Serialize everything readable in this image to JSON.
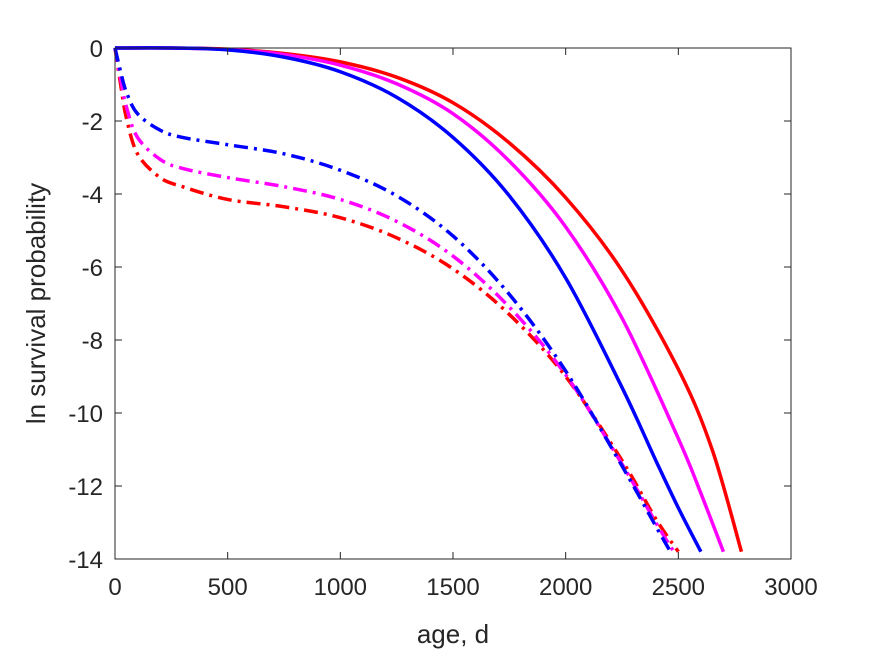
{
  "chart_data": {
    "type": "line",
    "xlabel": "age, d",
    "ylabel": "ln survival probability",
    "xlim": [
      0,
      3000
    ],
    "ylim": [
      -14,
      0
    ],
    "xticks": [
      0,
      500,
      1000,
      1500,
      2000,
      2500,
      3000
    ],
    "yticks": [
      0,
      -2,
      -4,
      -6,
      -8,
      -10,
      -12,
      -14
    ],
    "grid": false,
    "legend": "none",
    "series": [
      {
        "color": "#ff0000",
        "style": "solid",
        "x": [
          0,
          250,
          500,
          750,
          1000,
          1250,
          1500,
          1750,
          2000,
          2250,
          2500,
          2650,
          2780
        ],
        "y": [
          0,
          0,
          -0.03,
          -0.15,
          -0.38,
          -0.8,
          -1.5,
          -2.6,
          -4.1,
          -6.1,
          -8.8,
          -11.0,
          -13.8
        ]
      },
      {
        "color": "#ff00ff",
        "style": "solid",
        "x": [
          0,
          250,
          500,
          750,
          1000,
          1250,
          1500,
          1750,
          2000,
          2250,
          2500,
          2600,
          2700
        ],
        "y": [
          0,
          0,
          -0.04,
          -0.18,
          -0.47,
          -0.98,
          -1.8,
          -3.1,
          -4.9,
          -7.4,
          -10.7,
          -12.2,
          -13.8
        ]
      },
      {
        "color": "#0000ff",
        "style": "solid",
        "x": [
          0,
          250,
          500,
          750,
          1000,
          1250,
          1500,
          1750,
          2000,
          2250,
          2400,
          2500,
          2600
        ],
        "y": [
          0,
          0,
          -0.05,
          -0.25,
          -0.65,
          -1.35,
          -2.45,
          -4.05,
          -6.3,
          -9.3,
          -11.3,
          -12.6,
          -13.8
        ]
      },
      {
        "color": "#ff0000",
        "style": "dashdot",
        "x": [
          0,
          25,
          50,
          100,
          200,
          300,
          500,
          750,
          1000,
          1250,
          1500,
          1750,
          2000,
          2250,
          2400,
          2500
        ],
        "y": [
          0,
          -1.0,
          -1.9,
          -2.9,
          -3.55,
          -3.8,
          -4.15,
          -4.35,
          -4.65,
          -5.2,
          -6.05,
          -7.3,
          -9.0,
          -11.3,
          -12.9,
          -13.8
        ]
      },
      {
        "color": "#ff00ff",
        "style": "dashdot",
        "x": [
          0,
          25,
          50,
          100,
          200,
          300,
          500,
          750,
          1000,
          1250,
          1500,
          1750,
          2000,
          2250,
          2400,
          2480
        ],
        "y": [
          0,
          -0.85,
          -1.6,
          -2.45,
          -3.05,
          -3.3,
          -3.55,
          -3.8,
          -4.15,
          -4.75,
          -5.7,
          -7.1,
          -8.95,
          -11.4,
          -13.0,
          -13.8
        ]
      },
      {
        "color": "#0000ff",
        "style": "dashdot",
        "x": [
          0,
          25,
          50,
          100,
          200,
          300,
          500,
          750,
          1000,
          1250,
          1500,
          1750,
          2000,
          2250,
          2400,
          2465
        ],
        "y": [
          0,
          -0.65,
          -1.2,
          -1.8,
          -2.25,
          -2.45,
          -2.65,
          -2.9,
          -3.35,
          -4.05,
          -5.15,
          -6.75,
          -8.85,
          -11.45,
          -13.1,
          -13.8
        ]
      }
    ]
  }
}
